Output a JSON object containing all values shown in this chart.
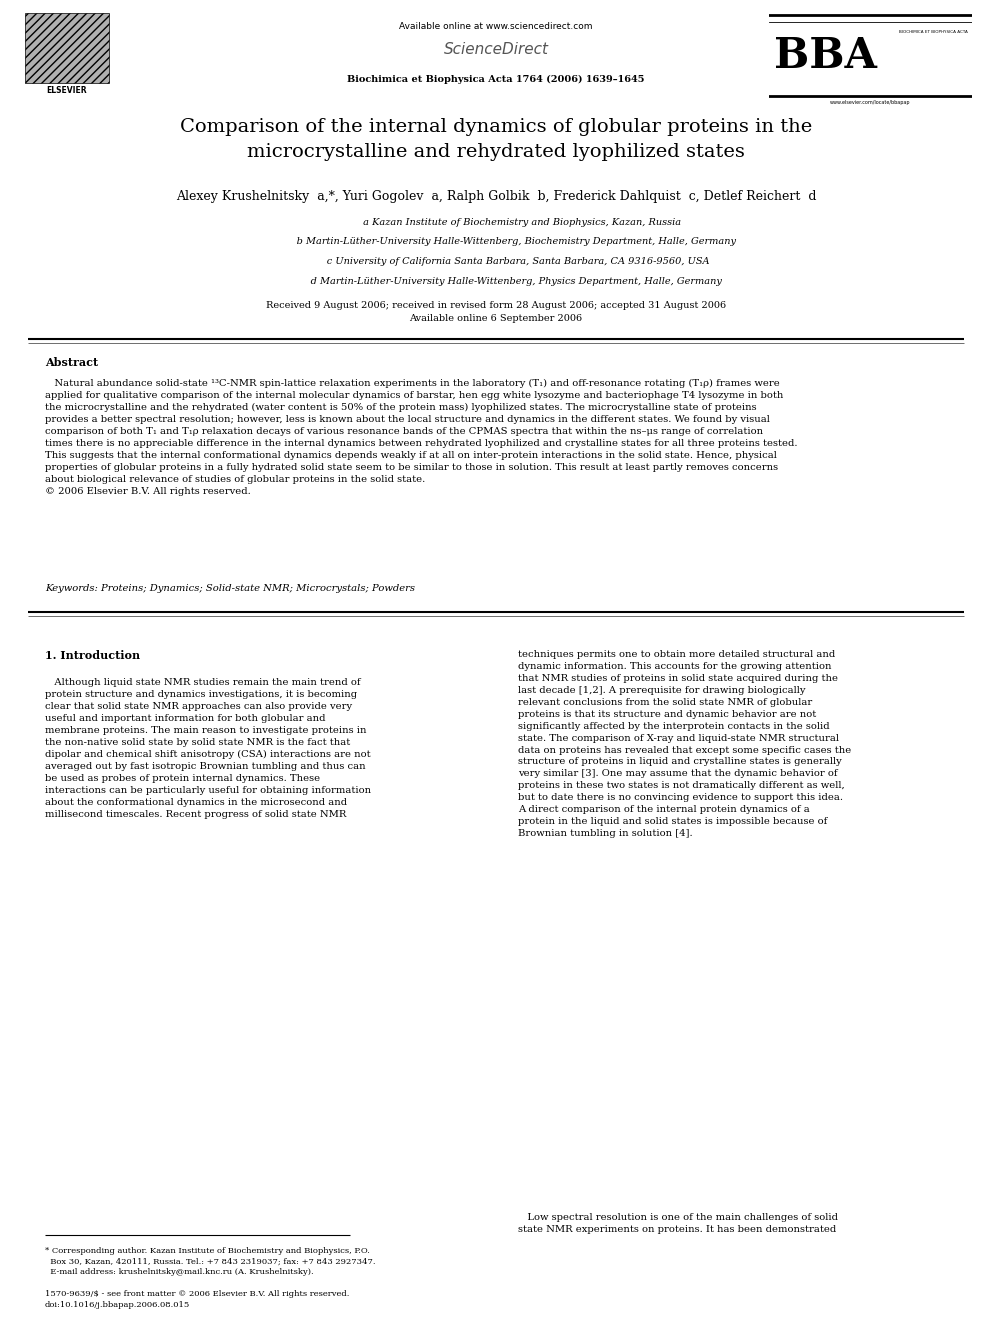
{
  "page_width": 9.92,
  "page_height": 13.23,
  "bg_color": "#ffffff",
  "header": {
    "available_online_text": "Available online at www.sciencedirect.com",
    "sciencedirect_text": "ScienceDirect",
    "journal_text": "Biochimica et Biophysica Acta 1764 (2006) 1639–1645",
    "elsevier_text": "ELSEVIER",
    "bba_subtext": "BIOCHIMICA ET BIOPHYSICA ACTA",
    "bba_url": "www.elsevier.com/locate/bbapap"
  },
  "title": "Comparison of the internal dynamics of globular proteins in the\nmicrocrystalline and rehydrated lyophilized states",
  "authors": "Alexey Krushelnitsky  a,*, Yuri Gogolev  a, Ralph Golbik  b, Frederick Dahlquist  c, Detlef Reichert  d",
  "affiliations": [
    "                 a Kazan Institute of Biochemistry and Biophysics, Kazan, Russia",
    "             b Martin-Lüther-University Halle-Wittenberg, Biochemistry Department, Halle, Germany",
    "              c University of California Santa Barbara, Santa Barbara, CA 9316-9560, USA",
    "             d Martin-Lüther-University Halle-Wittenberg, Physics Department, Halle, Germany"
  ],
  "dates_text": "Received 9 August 2006; received in revised form 28 August 2006; accepted 31 August 2006\nAvailable online 6 September 2006",
  "abstract_title": "Abstract",
  "abstract_text": "   Natural abundance solid-state ¹³C-NMR spin-lattice relaxation experiments in the laboratory (T₁) and off-resonance rotating (T₁ρ) frames were\napplied for qualitative comparison of the internal molecular dynamics of barstar, hen egg white lysozyme and bacteriophage T4 lysozyme in both\nthe microcrystalline and the rehydrated (water content is 50% of the protein mass) lyophilized states. The microcrystalline state of proteins\nprovides a better spectral resolution; however, less is known about the local structure and dynamics in the different states. We found by visual\ncomparison of both T₁ and T₁ρ relaxation decays of various resonance bands of the CPMAS spectra that within the ns–μs range of correlation\ntimes there is no appreciable difference in the internal dynamics between rehydrated lyophilized and crystalline states for all three proteins tested.\nThis suggests that the internal conformational dynamics depends weakly if at all on inter-protein interactions in the solid state. Hence, physical\nproperties of globular proteins in a fully hydrated solid state seem to be similar to those in solution. This result at least partly removes concerns\nabout biological relevance of studies of globular proteins in the solid state.\n© 2006 Elsevier B.V. All rights reserved.",
  "keywords_text": "Keywords: Proteins; Dynamics; Solid-state NMR; Microcrystals; Powders",
  "section1_title": "1. Introduction",
  "section1_left": "   Although liquid state NMR studies remain the main trend of\nprotein structure and dynamics investigations, it is becoming\nclear that solid state NMR approaches can also provide very\nuseful and important information for both globular and\nmembrane proteins. The main reason to investigate proteins in\nthe non-native solid state by solid state NMR is the fact that\ndipolar and chemical shift anisotropy (CSA) interactions are not\naveraged out by fast isotropic Brownian tumbling and thus can\nbe used as probes of protein internal dynamics. These\ninteractions can be particularly useful for obtaining information\nabout the conformational dynamics in the microsecond and\nmillisecond timescales. Recent progress of solid state NMR",
  "section1_right": "techniques permits one to obtain more detailed structural and\ndynamic information. This accounts for the growing attention\nthat NMR studies of proteins in solid state acquired during the\nlast decade [1,2]. A prerequisite for drawing biologically\nrelevant conclusions from the solid state NMR of globular\nproteins is that its structure and dynamic behavior are not\nsignificantly affected by the interprotein contacts in the solid\nstate. The comparison of X-ray and liquid-state NMR structural\ndata on proteins has revealed that except some specific cases the\nstructure of proteins in liquid and crystalline states is generally\nvery similar [3]. One may assume that the dynamic behavior of\nproteins in these two states is not dramatically different as well,\nbut to date there is no convincing evidence to support this idea.\nA direct comparison of the internal protein dynamics of a\nprotein in the liquid and solid states is impossible because of\nBrownian tumbling in solution [4].",
  "footnote_star": "* Corresponding author. Kazan Institute of Biochemistry and Biophysics, P.O.\n  Box 30, Kazan, 420111, Russia. Tel.: +7 843 2319037; fax: +7 843 2927347.\n  E-mail address: krushelnitsky@mail.knc.ru (A. Krushelnitsky).",
  "footnote_copyright": "1570-9639/$ - see front matter © 2006 Elsevier B.V. All rights reserved.\ndoi:10.1016/j.bbapap.2006.08.015",
  "section2_right_start": "   Low spectral resolution is one of the main challenges of solid\nstate NMR experiments on proteins. It has been demonstrated"
}
